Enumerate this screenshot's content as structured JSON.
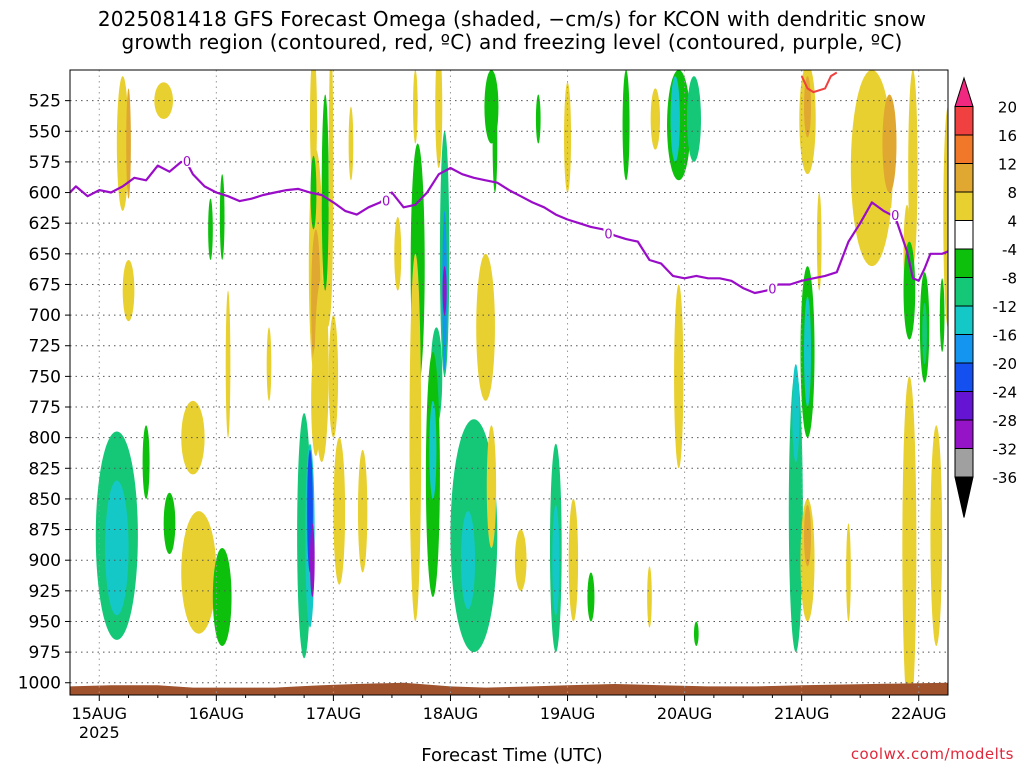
{
  "title_line1": "2025081418 GFS Forecast Omega (shaded, −cm/s) for KCON with dendritic snow",
  "title_line2": "growth region (contoured, red, ºC) and freezing level (contoured, purple, ºC)",
  "x_axis_label": "Forecast Time (UTC)",
  "credit": "coolwx.com/modelts",
  "colors": {
    "ground": "#a0522d",
    "freezing_level": "#9a0dc8",
    "dendritic_contour": "#f04040",
    "grid": "#555555"
  },
  "chart_data": {
    "type": "heatmap",
    "title": "2025081418 GFS Forecast Omega (shaded, −cm/s) for KCON with dendritic snow growth region (contoured, red, ºC) and freezing level (contoured, purple, ºC)",
    "xlabel": "Forecast Time (UTC)",
    "ylabel": "",
    "x_ticks": [
      "15AUG",
      "16AUG",
      "17AUG",
      "18AUG",
      "19AUG",
      "20AUG",
      "21AUG",
      "22AUG"
    ],
    "x_tick_year": "2025",
    "x_range_days": [
      14.75,
      22.25
    ],
    "y_ticks": [
      525,
      550,
      575,
      600,
      625,
      650,
      675,
      700,
      725,
      750,
      775,
      800,
      825,
      850,
      875,
      900,
      925,
      950,
      975,
      1000
    ],
    "y_range_hpa": [
      500,
      1010
    ],
    "y_reversed": true,
    "grid": true,
    "colorbar": {
      "labels": [
        20,
        16,
        12,
        8,
        4,
        -4,
        -8,
        -12,
        -16,
        -20,
        -24,
        -28,
        -32,
        -36
      ],
      "boundaries": [
        24,
        20,
        16,
        12,
        8,
        4,
        -4,
        -8,
        -12,
        -16,
        -20,
        -24,
        -28,
        -32,
        -36
      ],
      "colors": [
        "#f02880",
        "#f04040",
        "#f07828",
        "#e0a830",
        "#e8d030",
        "#ffffff",
        "#0cc00c",
        "#14c878",
        "#14c8c8",
        "#1496f0",
        "#1450f0",
        "#6414d2",
        "#9614c8",
        "#a0a0a0",
        "#000000"
      ]
    },
    "freezing_level_label": "0",
    "freezing_level": {
      "x": [
        14.75,
        14.8,
        14.9,
        15.0,
        15.1,
        15.2,
        15.3,
        15.4,
        15.5,
        15.6,
        15.7,
        15.75,
        15.8,
        15.9,
        16.0,
        16.1,
        16.2,
        16.3,
        16.4,
        16.5,
        16.6,
        16.7,
        16.8,
        16.9,
        17.0,
        17.1,
        17.2,
        17.3,
        17.4,
        17.5,
        17.6,
        17.7,
        17.8,
        17.9,
        18.0,
        18.1,
        18.2,
        18.3,
        18.4,
        18.5,
        18.6,
        18.7,
        18.8,
        18.9,
        19.0,
        19.1,
        19.2,
        19.3,
        19.4,
        19.5,
        19.6,
        19.7,
        19.8,
        19.9,
        20.0,
        20.1,
        20.2,
        20.3,
        20.4,
        20.5,
        20.6,
        20.7,
        20.8,
        20.9,
        21.0,
        21.1,
        21.2,
        21.3,
        21.4,
        21.5,
        21.6,
        21.7,
        21.8,
        21.9,
        21.95,
        22.0,
        22.05,
        22.1,
        22.2,
        22.25
      ],
      "y": [
        600,
        595,
        603,
        598,
        600,
        595,
        588,
        590,
        578,
        583,
        575,
        576,
        585,
        595,
        600,
        603,
        607,
        605,
        602,
        600,
        598,
        597,
        600,
        602,
        608,
        615,
        618,
        612,
        608,
        600,
        612,
        610,
        600,
        585,
        580,
        585,
        588,
        590,
        592,
        598,
        603,
        608,
        612,
        618,
        622,
        625,
        628,
        630,
        635,
        638,
        640,
        655,
        658,
        668,
        670,
        668,
        670,
        670,
        672,
        678,
        682,
        680,
        675,
        675,
        672,
        670,
        668,
        665,
        640,
        625,
        608,
        615,
        620,
        648,
        670,
        672,
        662,
        650,
        650,
        648
      ]
    },
    "dendritic_contour": {
      "x": [
        21.0,
        21.05,
        21.1,
        21.2,
        21.25,
        21.3
      ],
      "y": [
        505,
        515,
        518,
        515,
        505,
        502
      ]
    },
    "omega_regions": [
      {
        "x": 15.25,
        "p": 680,
        "w": 0.05,
        "h": 50,
        "v": 6
      },
      {
        "x": 15.2,
        "p": 560,
        "w": 0.05,
        "h": 110,
        "v": 6
      },
      {
        "x": 15.25,
        "p": 560,
        "w": 0.02,
        "h": 90,
        "v": 10
      },
      {
        "x": 15.55,
        "p": 525,
        "w": 0.08,
        "h": 30,
        "v": 5
      },
      {
        "x": 15.15,
        "p": 880,
        "w": 0.18,
        "h": 170,
        "v": -9
      },
      {
        "x": 15.15,
        "p": 890,
        "w": 0.1,
        "h": 110,
        "v": -12
      },
      {
        "x": 15.4,
        "p": 820,
        "w": 0.03,
        "h": 60,
        "v": -6
      },
      {
        "x": 15.6,
        "p": 870,
        "w": 0.05,
        "h": 50,
        "v": -6
      },
      {
        "x": 15.8,
        "p": 800,
        "w": 0.1,
        "h": 60,
        "v": 5
      },
      {
        "x": 15.85,
        "p": 910,
        "w": 0.15,
        "h": 100,
        "v": 5
      },
      {
        "x": 16.05,
        "p": 930,
        "w": 0.08,
        "h": 80,
        "v": -7
      },
      {
        "x": 15.95,
        "p": 630,
        "w": 0.02,
        "h": 50,
        "v": -5
      },
      {
        "x": 16.1,
        "p": 740,
        "w": 0.02,
        "h": 120,
        "v": 5
      },
      {
        "x": 16.05,
        "p": 620,
        "w": 0.02,
        "h": 70,
        "v": -6
      },
      {
        "x": 16.45,
        "p": 740,
        "w": 0.02,
        "h": 60,
        "v": 5
      },
      {
        "x": 16.75,
        "p": 880,
        "w": 0.06,
        "h": 200,
        "v": -10
      },
      {
        "x": 16.8,
        "p": 880,
        "w": 0.04,
        "h": 150,
        "v": -14
      },
      {
        "x": 16.8,
        "p": 860,
        "w": 0.025,
        "h": 100,
        "v": -22
      },
      {
        "x": 16.82,
        "p": 900,
        "w": 0.02,
        "h": 60,
        "v": -30
      },
      {
        "x": 16.85,
        "p": 660,
        "w": 0.06,
        "h": 190,
        "v": 5
      },
      {
        "x": 16.85,
        "p": 690,
        "w": 0.04,
        "h": 120,
        "v": 11
      },
      {
        "x": 16.83,
        "p": 540,
        "w": 0.03,
        "h": 110,
        "v": 6
      },
      {
        "x": 16.83,
        "p": 600,
        "w": 0.025,
        "h": 60,
        "v": -6
      },
      {
        "x": 16.85,
        "p": 770,
        "w": 0.04,
        "h": 90,
        "v": 5
      },
      {
        "x": 16.95,
        "p": 660,
        "w": 0.04,
        "h": 100,
        "v": 5
      },
      {
        "x": 16.9,
        "p": 745,
        "w": 0.06,
        "h": 150,
        "v": 5
      },
      {
        "x": 16.93,
        "p": 600,
        "w": 0.03,
        "h": 160,
        "v": -6
      },
      {
        "x": 16.98,
        "p": 580,
        "w": 0.02,
        "h": 200,
        "v": 5
      },
      {
        "x": 17.0,
        "p": 750,
        "w": 0.04,
        "h": 100,
        "v": 5
      },
      {
        "x": 17.05,
        "p": 860,
        "w": 0.05,
        "h": 120,
        "v": 5
      },
      {
        "x": 17.15,
        "p": 560,
        "w": 0.02,
        "h": 60,
        "v": 5
      },
      {
        "x": 17.25,
        "p": 860,
        "w": 0.04,
        "h": 100,
        "v": 5
      },
      {
        "x": 17.55,
        "p": 650,
        "w": 0.03,
        "h": 60,
        "v": 5
      },
      {
        "x": 17.7,
        "p": 530,
        "w": 0.02,
        "h": 60,
        "v": 5
      },
      {
        "x": 17.72,
        "p": 660,
        "w": 0.06,
        "h": 200,
        "v": -6
      },
      {
        "x": 17.7,
        "p": 800,
        "w": 0.05,
        "h": 300,
        "v": 5
      },
      {
        "x": 17.9,
        "p": 530,
        "w": 0.03,
        "h": 100,
        "v": 5
      },
      {
        "x": 17.95,
        "p": 650,
        "w": 0.04,
        "h": 200,
        "v": -8
      },
      {
        "x": 17.95,
        "p": 680,
        "w": 0.02,
        "h": 130,
        "v": -17
      },
      {
        "x": 17.95,
        "p": 680,
        "w": 0.01,
        "h": 40,
        "v": -30
      },
      {
        "x": 17.88,
        "p": 750,
        "w": 0.05,
        "h": 80,
        "v": -8
      },
      {
        "x": 17.85,
        "p": 830,
        "w": 0.06,
        "h": 200,
        "v": -6
      },
      {
        "x": 17.85,
        "p": 810,
        "w": 0.03,
        "h": 80,
        "v": -12
      },
      {
        "x": 18.2,
        "p": 880,
        "w": 0.2,
        "h": 190,
        "v": -8
      },
      {
        "x": 18.2,
        "p": 880,
        "w": 0.12,
        "h": 140,
        "v": -11
      },
      {
        "x": 18.15,
        "p": 900,
        "w": 0.06,
        "h": 80,
        "v": -14
      },
      {
        "x": 18.3,
        "p": 710,
        "w": 0.08,
        "h": 120,
        "v": 5
      },
      {
        "x": 18.35,
        "p": 840,
        "w": 0.04,
        "h": 100,
        "v": 5
      },
      {
        "x": 18.35,
        "p": 530,
        "w": 0.06,
        "h": 60,
        "v": -7
      },
      {
        "x": 18.38,
        "p": 560,
        "w": 0.02,
        "h": 80,
        "v": -6
      },
      {
        "x": 18.6,
        "p": 900,
        "w": 0.05,
        "h": 50,
        "v": 5
      },
      {
        "x": 18.75,
        "p": 540,
        "w": 0.02,
        "h": 40,
        "v": -6
      },
      {
        "x": 18.9,
        "p": 890,
        "w": 0.05,
        "h": 170,
        "v": -8
      },
      {
        "x": 18.9,
        "p": 900,
        "w": 0.03,
        "h": 90,
        "v": -12
      },
      {
        "x": 19.0,
        "p": 555,
        "w": 0.03,
        "h": 90,
        "v": 5
      },
      {
        "x": 19.05,
        "p": 900,
        "w": 0.04,
        "h": 100,
        "v": 5
      },
      {
        "x": 19.2,
        "p": 930,
        "w": 0.03,
        "h": 40,
        "v": -6
      },
      {
        "x": 19.5,
        "p": 545,
        "w": 0.03,
        "h": 90,
        "v": -6
      },
      {
        "x": 19.7,
        "p": 930,
        "w": 0.02,
        "h": 50,
        "v": 5
      },
      {
        "x": 19.75,
        "p": 540,
        "w": 0.04,
        "h": 50,
        "v": 5
      },
      {
        "x": 19.95,
        "p": 545,
        "w": 0.1,
        "h": 90,
        "v": -6
      },
      {
        "x": 19.92,
        "p": 540,
        "w": 0.04,
        "h": 70,
        "v": -12
      },
      {
        "x": 19.95,
        "p": 750,
        "w": 0.04,
        "h": 150,
        "v": 5
      },
      {
        "x": 20.08,
        "p": 540,
        "w": 0.06,
        "h": 70,
        "v": -9
      },
      {
        "x": 20.1,
        "p": 960,
        "w": 0.02,
        "h": 20,
        "v": -6
      },
      {
        "x": 20.95,
        "p": 860,
        "w": 0.06,
        "h": 230,
        "v": -8
      },
      {
        "x": 20.95,
        "p": 780,
        "w": 0.03,
        "h": 80,
        "v": -12
      },
      {
        "x": 21.05,
        "p": 900,
        "w": 0.06,
        "h": 100,
        "v": 5
      },
      {
        "x": 21.05,
        "p": 880,
        "w": 0.03,
        "h": 50,
        "v": 10
      },
      {
        "x": 21.05,
        "p": 730,
        "w": 0.06,
        "h": 140,
        "v": -7
      },
      {
        "x": 21.05,
        "p": 730,
        "w": 0.03,
        "h": 90,
        "v": -12
      },
      {
        "x": 21.05,
        "p": 540,
        "w": 0.07,
        "h": 90,
        "v": 5
      },
      {
        "x": 21.05,
        "p": 530,
        "w": 0.03,
        "h": 50,
        "v": 10
      },
      {
        "x": 21.15,
        "p": 640,
        "w": 0.02,
        "h": 80,
        "v": 5
      },
      {
        "x": 21.4,
        "p": 910,
        "w": 0.02,
        "h": 80,
        "v": 5
      },
      {
        "x": 21.6,
        "p": 580,
        "w": 0.18,
        "h": 160,
        "v": 5
      },
      {
        "x": 21.75,
        "p": 560,
        "w": 0.06,
        "h": 80,
        "v": 10
      },
      {
        "x": 21.95,
        "p": 580,
        "w": 0.04,
        "h": 160,
        "v": 5
      },
      {
        "x": 21.9,
        "p": 650,
        "w": 0.03,
        "h": 80,
        "v": 5
      },
      {
        "x": 21.92,
        "p": 890,
        "w": 0.06,
        "h": 280,
        "v": 5
      },
      {
        "x": 21.92,
        "p": 680,
        "w": 0.05,
        "h": 80,
        "v": -6
      },
      {
        "x": 22.05,
        "p": 710,
        "w": 0.04,
        "h": 90,
        "v": -6
      },
      {
        "x": 22.05,
        "p": 715,
        "w": 0.02,
        "h": 50,
        "v": -10
      },
      {
        "x": 22.15,
        "p": 880,
        "w": 0.05,
        "h": 180,
        "v": 5
      },
      {
        "x": 22.2,
        "p": 700,
        "w": 0.02,
        "h": 60,
        "v": -6
      },
      {
        "x": 22.25,
        "p": 620,
        "w": 0.04,
        "h": 180,
        "v": 5
      }
    ],
    "ground_top_hpa": [
      1003,
      1002,
      1002,
      1004,
      1004,
      1004,
      1003,
      1002,
      1001,
      1000,
      1003,
      1004,
      1003,
      1002,
      1001,
      1002,
      1003,
      1003,
      1002,
      1001,
      1000
    ],
    "ground_x": [
      14.75,
      15.1,
      15.5,
      15.8,
      16.2,
      16.5,
      16.7,
      16.9,
      17.2,
      17.6,
      18.0,
      18.3,
      18.7,
      19.0,
      19.4,
      19.8,
      20.2,
      20.6,
      21.0,
      21.6,
      22.25
    ]
  }
}
